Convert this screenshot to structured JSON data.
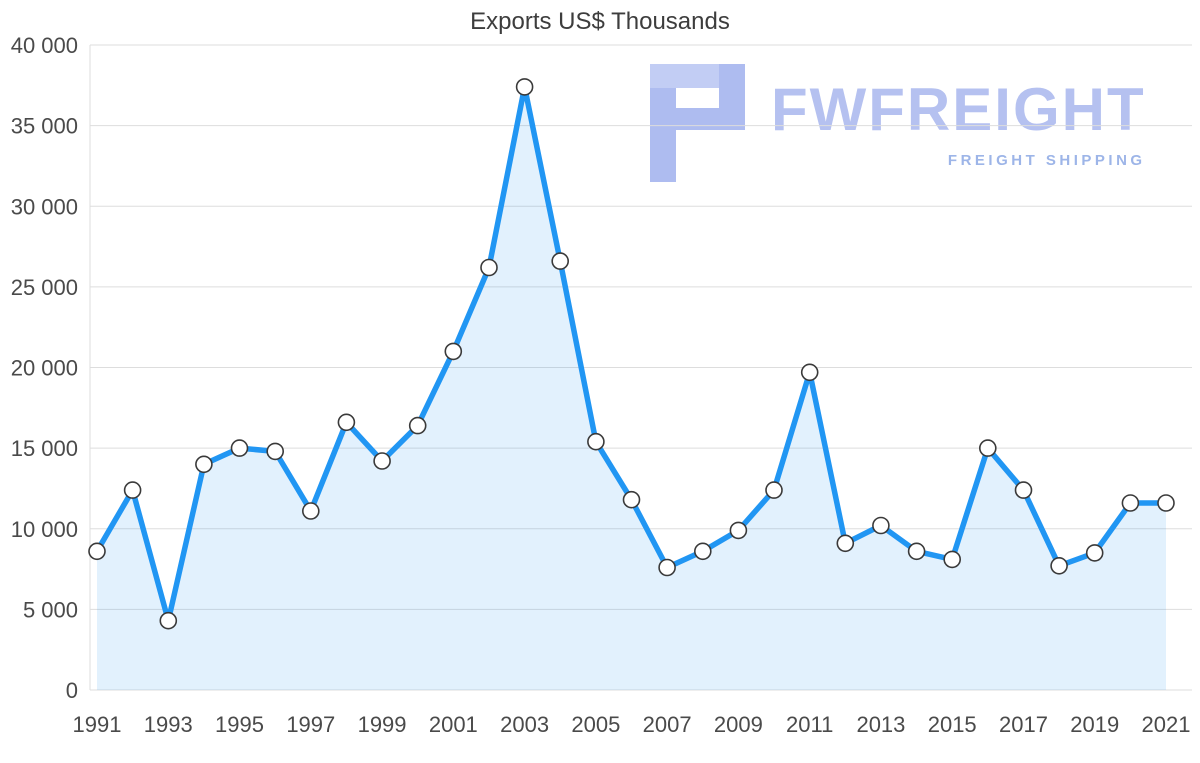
{
  "title": "Exports US$ Thousands",
  "watermark": {
    "brand": "FWFREIGHT",
    "tagline": "FREIGHT SHIPPING"
  },
  "colors": {
    "line": "#2196F3",
    "area_fill": "rgba(33,150,243,0.13)",
    "marker_fill": "#ffffff",
    "marker_stroke": "#3a3a3a",
    "grid": "#dddddd",
    "axis_text": "#4a4a4a",
    "title_text": "#3d3d3d",
    "logo_main": "#aebcf0",
    "logo_light": "#c2cdf4"
  },
  "chart_data": {
    "type": "line",
    "title": "Exports US$ Thousands",
    "xlabel": "",
    "ylabel": "",
    "area": true,
    "markers": true,
    "grid": "horizontal",
    "legend": "none",
    "ylim": [
      0,
      40000
    ],
    "y_ticks": [
      0,
      5000,
      10000,
      15000,
      20000,
      25000,
      30000,
      35000,
      40000
    ],
    "x": [
      1991,
      1992,
      1993,
      1994,
      1995,
      1996,
      1997,
      1998,
      1999,
      2000,
      2001,
      2002,
      2003,
      2004,
      2005,
      2006,
      2007,
      2008,
      2009,
      2010,
      2011,
      2012,
      2013,
      2014,
      2015,
      2016,
      2017,
      2018,
      2019,
      2020,
      2021
    ],
    "x_tick_labels": [
      "1991",
      "1993",
      "1995",
      "1997",
      "1999",
      "2001",
      "2003",
      "2005",
      "2007",
      "2009",
      "2011",
      "2013",
      "2015",
      "2017",
      "2019",
      "2021"
    ],
    "values": [
      8600,
      12400,
      4300,
      14000,
      15000,
      14800,
      11100,
      16600,
      14200,
      16400,
      21000,
      26200,
      37400,
      26600,
      15400,
      11800,
      7600,
      8600,
      9900,
      12400,
      19700,
      9100,
      10200,
      8600,
      8100,
      15000,
      12400,
      7700,
      8500,
      11600,
      11600
    ]
  }
}
